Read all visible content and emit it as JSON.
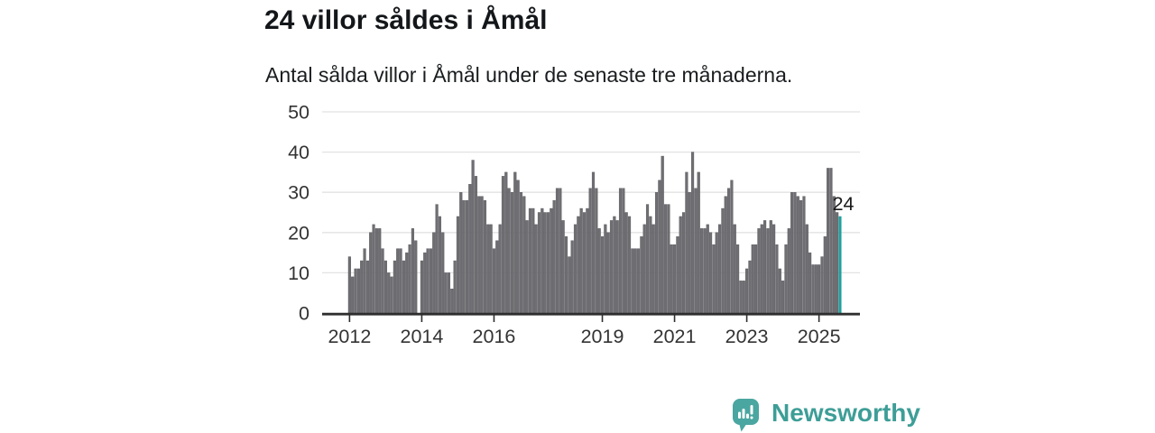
{
  "header": {
    "title": "24 villor såldes i Åmål",
    "subtitle": "Antal sålda villor i Åmål under de senaste tre månaderna."
  },
  "chart_data": {
    "type": "bar",
    "title": "24 villor såldes i Åmål",
    "subtitle": "Antal sålda villor i Åmål under de senaste tre månaderna.",
    "frequency": "monthly",
    "x_start": "2012-01",
    "x_end": "2025-08",
    "values_by_year": {
      "2012": [
        14,
        9,
        11,
        11,
        13,
        16,
        13,
        20,
        22,
        21,
        21,
        16
      ],
      "2013": [
        13,
        10,
        9,
        13,
        16,
        16,
        13,
        15,
        17,
        21,
        18,
        0
      ],
      "2014": [
        13,
        15,
        16,
        16,
        20,
        27,
        24,
        20,
        10,
        10,
        6,
        13
      ],
      "2015": [
        24,
        30,
        28,
        28,
        32,
        38,
        34,
        29,
        29,
        28,
        22,
        22
      ],
      "2016": [
        16,
        18,
        22,
        34,
        35,
        31,
        30,
        35,
        33,
        30,
        29,
        23
      ],
      "2017": [
        26,
        26,
        22,
        25,
        26,
        25,
        25,
        26,
        28,
        31,
        31,
        23
      ],
      "2018": [
        19,
        14,
        18,
        22,
        24,
        26,
        25,
        26,
        31,
        35,
        31,
        21
      ],
      "2019": [
        19,
        22,
        20,
        23,
        24,
        23,
        31,
        31,
        25,
        24,
        16,
        16
      ],
      "2020": [
        16,
        19,
        22,
        27,
        24,
        22,
        30,
        33,
        39,
        27,
        27,
        17
      ],
      "2021": [
        17,
        19,
        24,
        25,
        35,
        30,
        40,
        31,
        35,
        21,
        21,
        22
      ],
      "2022": [
        20,
        17,
        20,
        22,
        26,
        29,
        31,
        33,
        22,
        17,
        8,
        8
      ],
      "2023": [
        11,
        13,
        17,
        17,
        21,
        22,
        23,
        21,
        23,
        22,
        17,
        11
      ],
      "2024": [
        8,
        17,
        21,
        30,
        30,
        29,
        28,
        29,
        22,
        15,
        12,
        12
      ],
      "2025": [
        12,
        14,
        19,
        36,
        36,
        29,
        25,
        24
      ]
    },
    "x_tick_labels": [
      "2012",
      "2014",
      "2016",
      "2019",
      "2021",
      "2023",
      "2025"
    ],
    "x_tick_month_index": [
      0,
      24,
      48,
      84,
      108,
      132,
      156
    ],
    "y_ticks": [
      0,
      10,
      20,
      30,
      40,
      50
    ],
    "ylim": [
      0,
      50
    ],
    "grid": "horizontal",
    "legend": "none",
    "bar_color": "#6f6f73",
    "bar_edge_color": "#55555a",
    "highlight": {
      "month_index": 163,
      "value": 24,
      "label": "24",
      "color": "#1ea09e"
    }
  },
  "branding": {
    "name": "Newsworthy",
    "logo_color": "#4aa6a0",
    "text_color": "#3d9e97",
    "logo_glyph": "speech-bubble-bar-chart-exclamation"
  },
  "colors": {
    "axis_line": "#2e2e2e",
    "axis_label": "#333333",
    "gridline": "#e2e2e2",
    "annotation_text": "#1a1a1a",
    "background": "#ffffff"
  }
}
